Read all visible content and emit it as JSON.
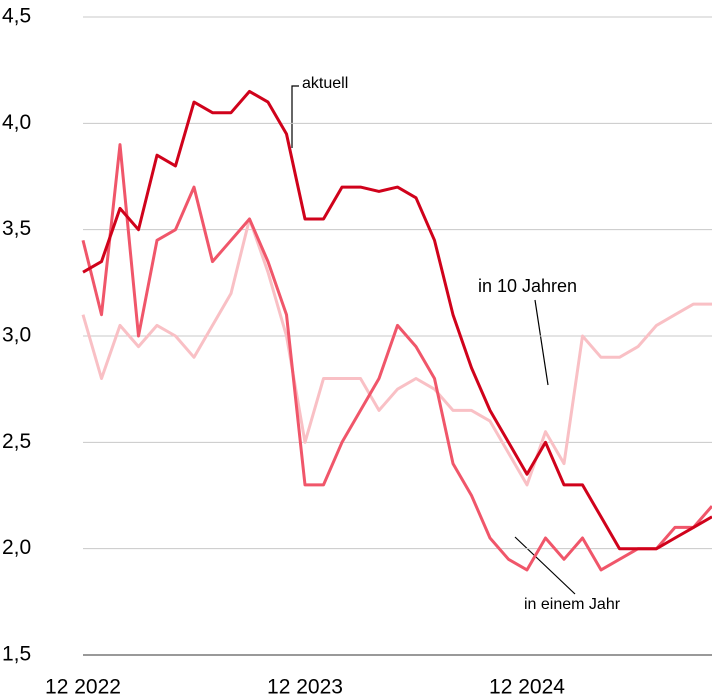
{
  "chart_data": {
    "type": "line",
    "categories": [
      "12 2022",
      null,
      null,
      null,
      null,
      null,
      null,
      null,
      null,
      null,
      null,
      null,
      "12 2023",
      null,
      null,
      null,
      null,
      null,
      null,
      null,
      null,
      null,
      null,
      null,
      "12 2024",
      null,
      null,
      null,
      null,
      null,
      null,
      null,
      null,
      null,
      null
    ],
    "series": [
      {
        "name": "aktuell",
        "color": "#d0021b",
        "values": [
          3.3,
          3.35,
          3.6,
          3.5,
          3.85,
          3.8,
          4.1,
          4.05,
          4.05,
          4.15,
          4.1,
          3.95,
          3.55,
          3.55,
          3.7,
          3.7,
          3.68,
          3.7,
          3.65,
          3.45,
          3.1,
          2.85,
          2.65,
          2.5,
          2.35,
          2.5,
          2.3,
          2.3,
          2.15,
          2.0,
          2.0,
          2.0,
          2.05,
          2.1,
          2.15
        ]
      },
      {
        "name": "in einem Jahr",
        "color": "#f0566a",
        "values": [
          3.45,
          3.1,
          3.9,
          3.0,
          3.45,
          3.5,
          3.7,
          3.35,
          3.45,
          3.55,
          3.35,
          3.1,
          2.3,
          2.3,
          2.5,
          2.65,
          2.8,
          3.05,
          2.95,
          2.8,
          2.4,
          2.25,
          2.05,
          1.95,
          1.9,
          2.05,
          1.95,
          2.05,
          1.9,
          1.95,
          2.0,
          2.0,
          2.1,
          2.1,
          2.2
        ]
      },
      {
        "name": "in 10 Jahren",
        "color": "#f9c0c5",
        "values": [
          3.1,
          2.8,
          3.05,
          2.95,
          3.05,
          3.0,
          2.9,
          3.05,
          3.2,
          3.55,
          3.3,
          3.0,
          2.5,
          2.8,
          2.8,
          2.8,
          2.65,
          2.75,
          2.8,
          2.75,
          2.65,
          2.65,
          2.6,
          2.45,
          2.3,
          2.55,
          2.4,
          3.0,
          2.9,
          2.9,
          2.95,
          3.05,
          3.1,
          3.15,
          3.15
        ]
      }
    ],
    "ylim": [
      1.5,
      4.5
    ],
    "yticks": [
      {
        "value": 1.5,
        "label": "1,5"
      },
      {
        "value": 2.0,
        "label": "2,0"
      },
      {
        "value": 2.5,
        "label": "2,5"
      },
      {
        "value": 3.0,
        "label": "3,0"
      },
      {
        "value": 3.5,
        "label": "3,5"
      },
      {
        "value": 4.0,
        "label": "4,0"
      },
      {
        "value": 4.5,
        "label": "4,5"
      }
    ],
    "grid": true
  }
}
